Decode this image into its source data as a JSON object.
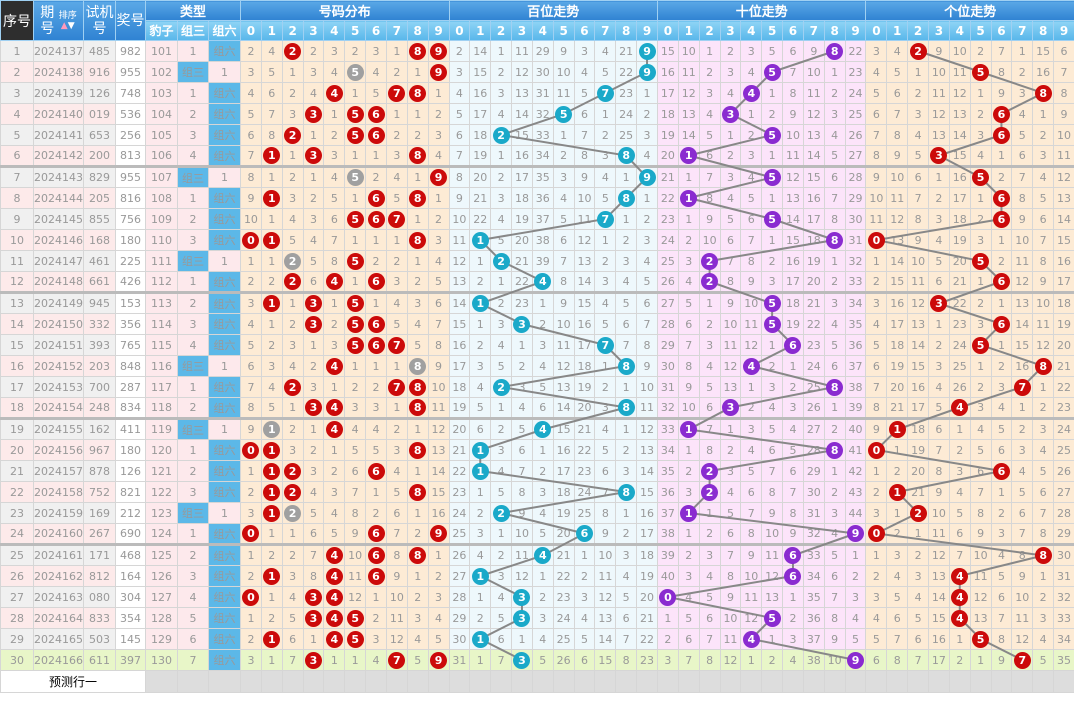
{
  "header": {
    "seq": "序号",
    "issue": "期号",
    "sort": "排序",
    "test": "试机号",
    "prize": "奖号",
    "type": "类型",
    "type_cols": [
      "豹子",
      "组三",
      "组六"
    ],
    "sections": [
      "号码分布",
      "百位走势",
      "十位走势",
      "个位走势"
    ],
    "digits": [
      "0",
      "1",
      "2",
      "3",
      "4",
      "5",
      "6",
      "7",
      "8",
      "9"
    ]
  },
  "colors": {
    "dist_ball": "#cc0a0a",
    "repeat_ball": "#a0a0a0",
    "hundreds_ball": "#1aa9c9",
    "tens_ball": "#8a2bd0",
    "units_ball": "#cc0a0a",
    "type_label_bg": "#5cb8e8",
    "line": "#888888"
  },
  "rows": [
    {
      "seq": "1",
      "issue": "2024137",
      "test": "485",
      "prize": "982",
      "type": "组六"
    },
    {
      "seq": "2",
      "issue": "2024138",
      "test": "916",
      "prize": "955",
      "type": "组三"
    },
    {
      "seq": "3",
      "issue": "2024139",
      "test": "126",
      "prize": "748",
      "type": "组六"
    },
    {
      "seq": "4",
      "issue": "2024140",
      "test": "019",
      "prize": "536",
      "type": "组六"
    },
    {
      "seq": "5",
      "issue": "2024141",
      "test": "653",
      "prize": "256",
      "type": "组六"
    },
    {
      "seq": "6",
      "issue": "2024142",
      "test": "200",
      "prize": "813",
      "type": "组六"
    },
    {
      "seq": "7",
      "issue": "2024143",
      "test": "829",
      "prize": "955",
      "type": "组三"
    },
    {
      "seq": "8",
      "issue": "2024144",
      "test": "205",
      "prize": "816",
      "type": "组六"
    },
    {
      "seq": "9",
      "issue": "2024145",
      "test": "855",
      "prize": "756",
      "type": "组六"
    },
    {
      "seq": "10",
      "issue": "2024146",
      "test": "168",
      "prize": "180",
      "type": "组六"
    },
    {
      "seq": "11",
      "issue": "2024147",
      "test": "461",
      "prize": "225",
      "type": "组三"
    },
    {
      "seq": "12",
      "issue": "2024148",
      "test": "661",
      "prize": "426",
      "type": "组六"
    },
    {
      "seq": "13",
      "issue": "2024149",
      "test": "945",
      "prize": "153",
      "type": "组六"
    },
    {
      "seq": "14",
      "issue": "2024150",
      "test": "332",
      "prize": "356",
      "type": "组六"
    },
    {
      "seq": "15",
      "issue": "2024151",
      "test": "393",
      "prize": "765",
      "type": "组六"
    },
    {
      "seq": "16",
      "issue": "2024152",
      "test": "203",
      "prize": "848",
      "type": "组三"
    },
    {
      "seq": "17",
      "issue": "2024153",
      "test": "700",
      "prize": "287",
      "type": "组六"
    },
    {
      "seq": "18",
      "issue": "2024154",
      "test": "248",
      "prize": "834",
      "type": "组六"
    },
    {
      "seq": "19",
      "issue": "2024155",
      "test": "162",
      "prize": "411",
      "type": "组三"
    },
    {
      "seq": "20",
      "issue": "2024156",
      "test": "967",
      "prize": "180",
      "type": "组六"
    },
    {
      "seq": "21",
      "issue": "2024157",
      "test": "878",
      "prize": "126",
      "type": "组六"
    },
    {
      "seq": "22",
      "issue": "2024158",
      "test": "752",
      "prize": "821",
      "type": "组六"
    },
    {
      "seq": "23",
      "issue": "2024159",
      "test": "169",
      "prize": "212",
      "type": "组三"
    },
    {
      "seq": "24",
      "issue": "2024160",
      "test": "267",
      "prize": "690",
      "type": "组六"
    },
    {
      "seq": "25",
      "issue": "2024161",
      "test": "171",
      "prize": "468",
      "type": "组六"
    },
    {
      "seq": "26",
      "issue": "2024162",
      "test": "812",
      "prize": "164",
      "type": "组六"
    },
    {
      "seq": "27",
      "issue": "2024163",
      "test": "080",
      "prize": "304",
      "type": "组六"
    },
    {
      "seq": "28",
      "issue": "2024164",
      "test": "833",
      "prize": "354",
      "type": "组六"
    },
    {
      "seq": "29",
      "issue": "2024165",
      "test": "503",
      "prize": "145",
      "type": "组六"
    },
    {
      "seq": "30",
      "issue": "2024166",
      "test": "611",
      "prize": "397",
      "type": "组六"
    }
  ],
  "first_row_omissions": {
    "type": [
      101,
      1,
      0
    ],
    "distribution": [
      2,
      4,
      0,
      2,
      3,
      2,
      3,
      1,
      0,
      0
    ],
    "hundreds": [
      2,
      14,
      1,
      11,
      29,
      9,
      3,
      4,
      21,
      0
    ],
    "tens": [
      15,
      10,
      1,
      2,
      3,
      5,
      6,
      9,
      0,
      22
    ],
    "units": [
      3,
      4,
      0,
      9,
      10,
      2,
      7,
      1,
      15,
      6
    ]
  },
  "prediction_row": {
    "label": "预测行一"
  }
}
